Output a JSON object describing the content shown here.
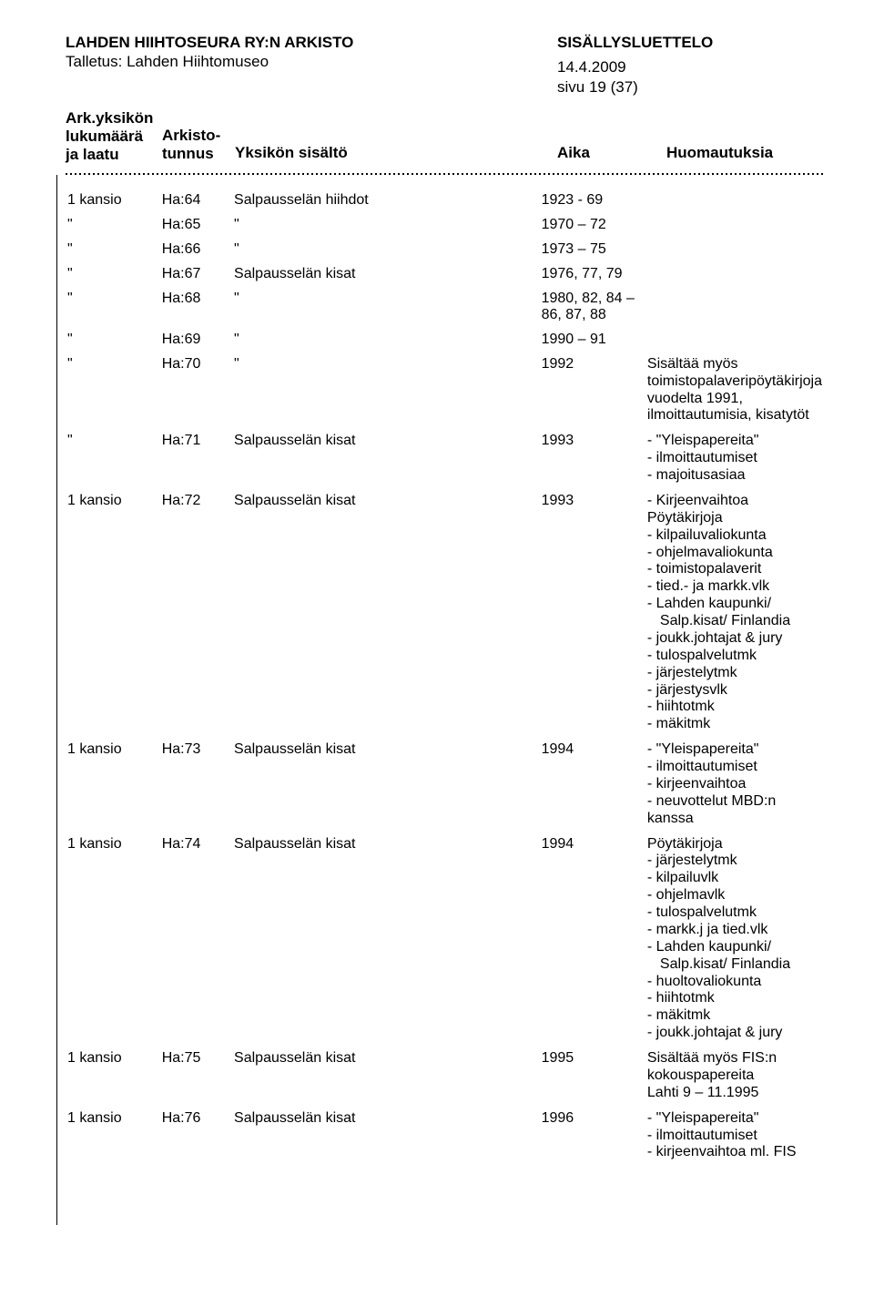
{
  "header": {
    "org_title": "LAHDEN HIIHTOSEURA RY:N ARKISTO",
    "talletus": "Talletus: Lahden Hiihtomuseo",
    "sisallys": "SISÄLLYSLUETTELO",
    "date": "14.4.2009",
    "pageinfo": "sivu 19 (37)",
    "col1a": "Ark.yksikön",
    "col1b": "lukumäärä",
    "col1c": "ja laatu",
    "col2a": "Arkisto-",
    "col2b": "tunnus",
    "col3": "Yksikön sisältö",
    "col4": "Aika",
    "col5": "Huomautuksia"
  },
  "rows": [
    {
      "c1": "1 kansio",
      "c2": "Ha:64",
      "c3": "Salpausselän hiihdot",
      "c4": "1923 - 69",
      "notes": []
    },
    {
      "c1": "\"",
      "c2": "Ha:65",
      "c3": "\"",
      "c4": "1970 – 72",
      "notes": []
    },
    {
      "c1": "\"",
      "c2": "Ha:66",
      "c3": "\"",
      "c4": "1973 – 75",
      "notes": []
    },
    {
      "c1": "\"",
      "c2": "Ha:67",
      "c3": "Salpausselän kisat",
      "c4": "1976, 77, 79",
      "notes": []
    },
    {
      "c1": "\"",
      "c2": "Ha:68",
      "c3": "\"",
      "c4": "1980, 82, 84 – 86, 87, 88",
      "notes": []
    },
    {
      "c1": "\"",
      "c2": "Ha:69",
      "c3": "\"",
      "c4": "1990 – 91",
      "notes": []
    },
    {
      "c1": "\"",
      "c2": "Ha:70",
      "c3": "\"",
      "c4": "1992",
      "notes": [
        "Sisältää myös",
        "toimistopalaveripöytäkirjoja",
        "vuodelta 1991,",
        "ilmoittautumisia, kisatytöt"
      ]
    },
    {
      "c1": "\"",
      "c2": "Ha:71",
      "c3": "Salpausselän kisat",
      "c4": "1993",
      "notes": [
        "- \"Yleispapereita\"",
        "- ilmoittautumiset",
        "- majoitusasiaa"
      ]
    },
    {
      "c1": "1 kansio",
      "c2": "Ha:72",
      "c3": "Salpausselän kisat",
      "c4": "1993",
      "notes": [
        "- Kirjeenvaihtoa",
        "Pöytäkirjoja",
        "- kilpailuvaliokunta",
        "- ohjelmavaliokunta",
        "- toimistopalaverit",
        "- tied.- ja markk.vlk",
        "- Lahden kaupunki/",
        "  Salp.kisat/ Finlandia",
        "- joukk.johtajat & jury",
        "- tulospalvelutmk",
        "- järjestelytmk",
        "- järjestysvlk",
        "- hiihtotmk",
        "- mäkitmk"
      ]
    },
    {
      "c1": "1 kansio",
      "c2": "Ha:73",
      "c3": "Salpausselän kisat",
      "c4": "1994",
      "notes": [
        "- \"Yleispapereita\"",
        "- ilmoittautumiset",
        "- kirjeenvaihtoa",
        "- neuvottelut MBD:n kanssa"
      ]
    },
    {
      "c1": "1 kansio",
      "c2": "Ha:74",
      "c3": "Salpausselän kisat",
      "c4": "1994",
      "notes": [
        "Pöytäkirjoja",
        "- järjestelytmk",
        "- kilpailuvlk",
        "- ohjelmavlk",
        "- tulospalvelutmk",
        "- markk.j ja tied.vlk",
        "- Lahden kaupunki/",
        "  Salp.kisat/ Finlandia",
        "- huoltovaliokunta",
        "- hiihtotmk",
        "- mäkitmk",
        "- joukk.johtajat & jury"
      ]
    },
    {
      "c1": "1 kansio",
      "c2": "Ha:75",
      "c3": "Salpausselän kisat",
      "c4": "1995",
      "notes": [
        "Sisältää myös FIS:n",
        "kokouspapereita",
        "Lahti 9 – 11.1995"
      ]
    },
    {
      "c1": "1 kansio",
      "c2": "Ha:76",
      "c3": "Salpausselän kisat",
      "c4": "1996",
      "notes": [
        "- \"Yleispapereita\"",
        "- ilmoittautumiset",
        "- kirjeenvaihtoa ml. FIS"
      ]
    }
  ]
}
